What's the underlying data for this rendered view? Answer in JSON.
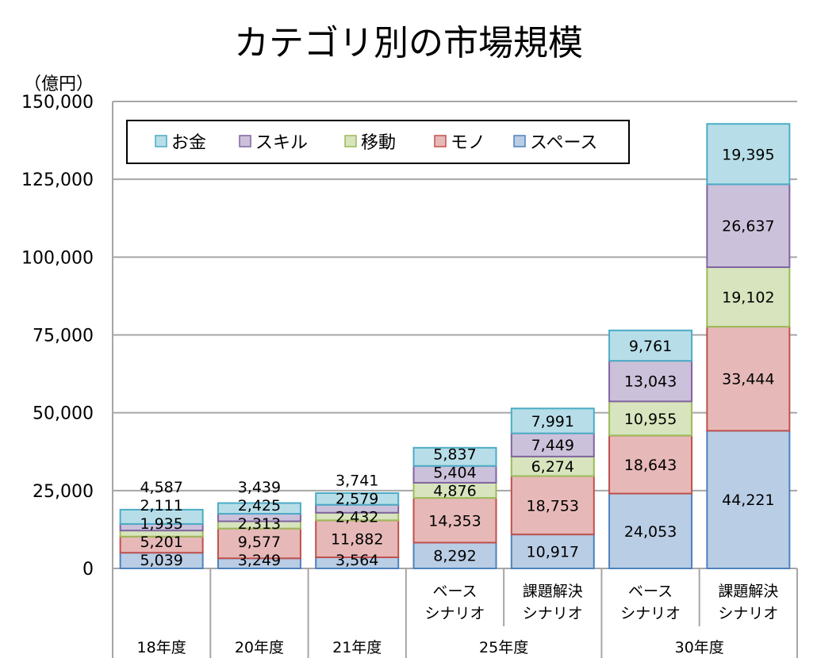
{
  "chart_data": {
    "type": "bar",
    "stacked": true,
    "title": "カテゴリ別の市場規模",
    "ylabel": "（億円）",
    "ylim": [
      0,
      150000
    ],
    "yticks": [
      0,
      25000,
      50000,
      75000,
      100000,
      125000,
      150000
    ],
    "ytick_labels": [
      "0",
      "25,000",
      "50,000",
      "75,000",
      "100,000",
      "125,000",
      "150,000"
    ],
    "grid": true,
    "legend_position": "top-left",
    "categories": [
      {
        "sub": "",
        "group": "18年度"
      },
      {
        "sub": "",
        "group": "20年度"
      },
      {
        "sub": "",
        "group": "21年度"
      },
      {
        "sub": "ベース\nシナリオ",
        "group": "25年度"
      },
      {
        "sub": "課題解決\nシナリオ",
        "group": "25年度"
      },
      {
        "sub": "ベース\nシナリオ",
        "group": "30年度"
      },
      {
        "sub": "課題解決\nシナリオ",
        "group": "30年度"
      }
    ],
    "groups": [
      "18年度",
      "20年度",
      "21年度",
      "25年度",
      "30年度"
    ],
    "series": [
      {
        "name": "スペース",
        "fill": "#b9cde5",
        "stroke": "#4f81bd",
        "values": [
          5039,
          3249,
          3564,
          8292,
          10917,
          24053,
          44221
        ],
        "labels": [
          "5,039",
          "3,249",
          "3,564",
          "8,292",
          "10,917",
          "24,053",
          "44,221"
        ]
      },
      {
        "name": "モノ",
        "fill": "#e6b9b8",
        "stroke": "#c0504d",
        "values": [
          5201,
          9577,
          11882,
          14353,
          18753,
          18643,
          33444
        ],
        "labels": [
          "5,201",
          "9,577",
          "11,882",
          "14,353",
          "18,753",
          "18,643",
          "33,444"
        ]
      },
      {
        "name": "移動",
        "fill": "#d7e4bd",
        "stroke": "#9bbb59",
        "values": [
          1935,
          2313,
          2432,
          4876,
          6274,
          10955,
          19102
        ],
        "labels": [
          "1,935",
          "2,313",
          "2,432",
          "4,876",
          "6,274",
          "10,955",
          "19,102"
        ]
      },
      {
        "name": "スキル",
        "fill": "#ccc1da",
        "stroke": "#8064a2",
        "values": [
          2111,
          2425,
          2579,
          5404,
          7449,
          13043,
          26637
        ],
        "labels": [
          "2,111",
          "2,425",
          "2,579",
          "5,404",
          "7,449",
          "13,043",
          "26,637"
        ]
      },
      {
        "name": "お金",
        "fill": "#b7dee8",
        "stroke": "#4bacc6",
        "values": [
          4587,
          3439,
          3741,
          5837,
          7991,
          9761,
          19395
        ],
        "labels": [
          "4,587",
          "3,439",
          "3,741",
          "5,837",
          "7,991",
          "9,761",
          "19,395"
        ]
      }
    ],
    "legend_order": [
      4,
      3,
      2,
      1,
      0
    ]
  }
}
